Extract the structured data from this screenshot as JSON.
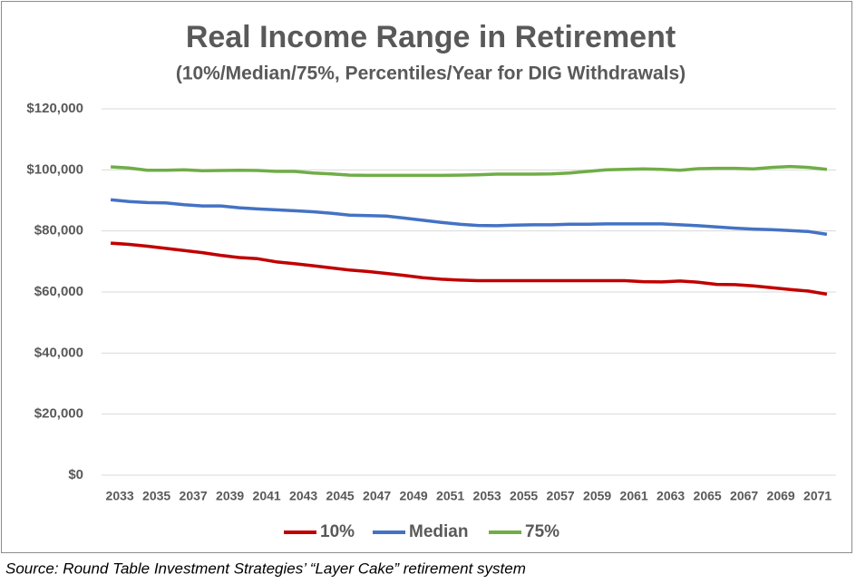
{
  "chart_data": {
    "type": "line",
    "title": "Real Income Range in Retirement",
    "subtitle": "(10%/Median/75%, Percentiles/Year for DIG Withdrawals)",
    "source": "Source: Round Table Investment Strategies’ “Layer Cake” retirement system",
    "categories": [
      "2033",
      null,
      "2035",
      null,
      "2037",
      null,
      "2039",
      null,
      "2041",
      null,
      "2043",
      null,
      "2045",
      null,
      "2047",
      null,
      "2049",
      null,
      "2051",
      null,
      "2053",
      null,
      "2055",
      null,
      "2057",
      null,
      "2059",
      null,
      "2061",
      null,
      "2063",
      null,
      "2065",
      null,
      "2067",
      null,
      "2069",
      null,
      "2071",
      null
    ],
    "series": [
      {
        "name": "10%",
        "color": "#c00000",
        "values": [
          76000,
          75600,
          75000,
          74300,
          73600,
          72900,
          72000,
          71300,
          70900,
          69900,
          69300,
          68600,
          67900,
          67200,
          66700,
          66100,
          65400,
          64700,
          64200,
          63900,
          63700,
          63700,
          63700,
          63700,
          63700,
          63700,
          63700,
          63700,
          63700,
          63400,
          63300,
          63600,
          63200,
          62500,
          62400,
          62000,
          61400,
          60800,
          60300,
          59300
        ]
      },
      {
        "name": "Median",
        "color": "#4472c4",
        "values": [
          90200,
          89600,
          89300,
          89200,
          88600,
          88200,
          88200,
          87600,
          87200,
          86900,
          86600,
          86300,
          85800,
          85200,
          85000,
          84900,
          84200,
          83500,
          82800,
          82200,
          81800,
          81700,
          81900,
          82000,
          82000,
          82200,
          82200,
          82300,
          82300,
          82300,
          82300,
          82000,
          81700,
          81300,
          80900,
          80600,
          80400,
          80100,
          79800,
          78900
        ]
      },
      {
        "name": "75%",
        "color": "#70ad47",
        "values": [
          101000,
          100600,
          99900,
          99900,
          100000,
          99700,
          99800,
          99900,
          99800,
          99500,
          99500,
          99000,
          98700,
          98300,
          98200,
          98200,
          98200,
          98200,
          98200,
          98300,
          98400,
          98600,
          98600,
          98600,
          98700,
          99000,
          99500,
          100000,
          100200,
          100300,
          100200,
          99900,
          100400,
          100500,
          100500,
          100300,
          100800,
          101100,
          100800,
          100200
        ]
      }
    ],
    "ylim": [
      0,
      120000
    ],
    "yticks": [
      {
        "value": 0,
        "label": "$0"
      },
      {
        "value": 20000,
        "label": "$20,000"
      },
      {
        "value": 40000,
        "label": "$40,000"
      },
      {
        "value": 60000,
        "label": "$60,000"
      },
      {
        "value": 80000,
        "label": "$80,000"
      },
      {
        "value": 100000,
        "label": "$100,000"
      },
      {
        "value": 120000,
        "label": "$120,000"
      }
    ],
    "grid": true,
    "legend": "bottom"
  }
}
